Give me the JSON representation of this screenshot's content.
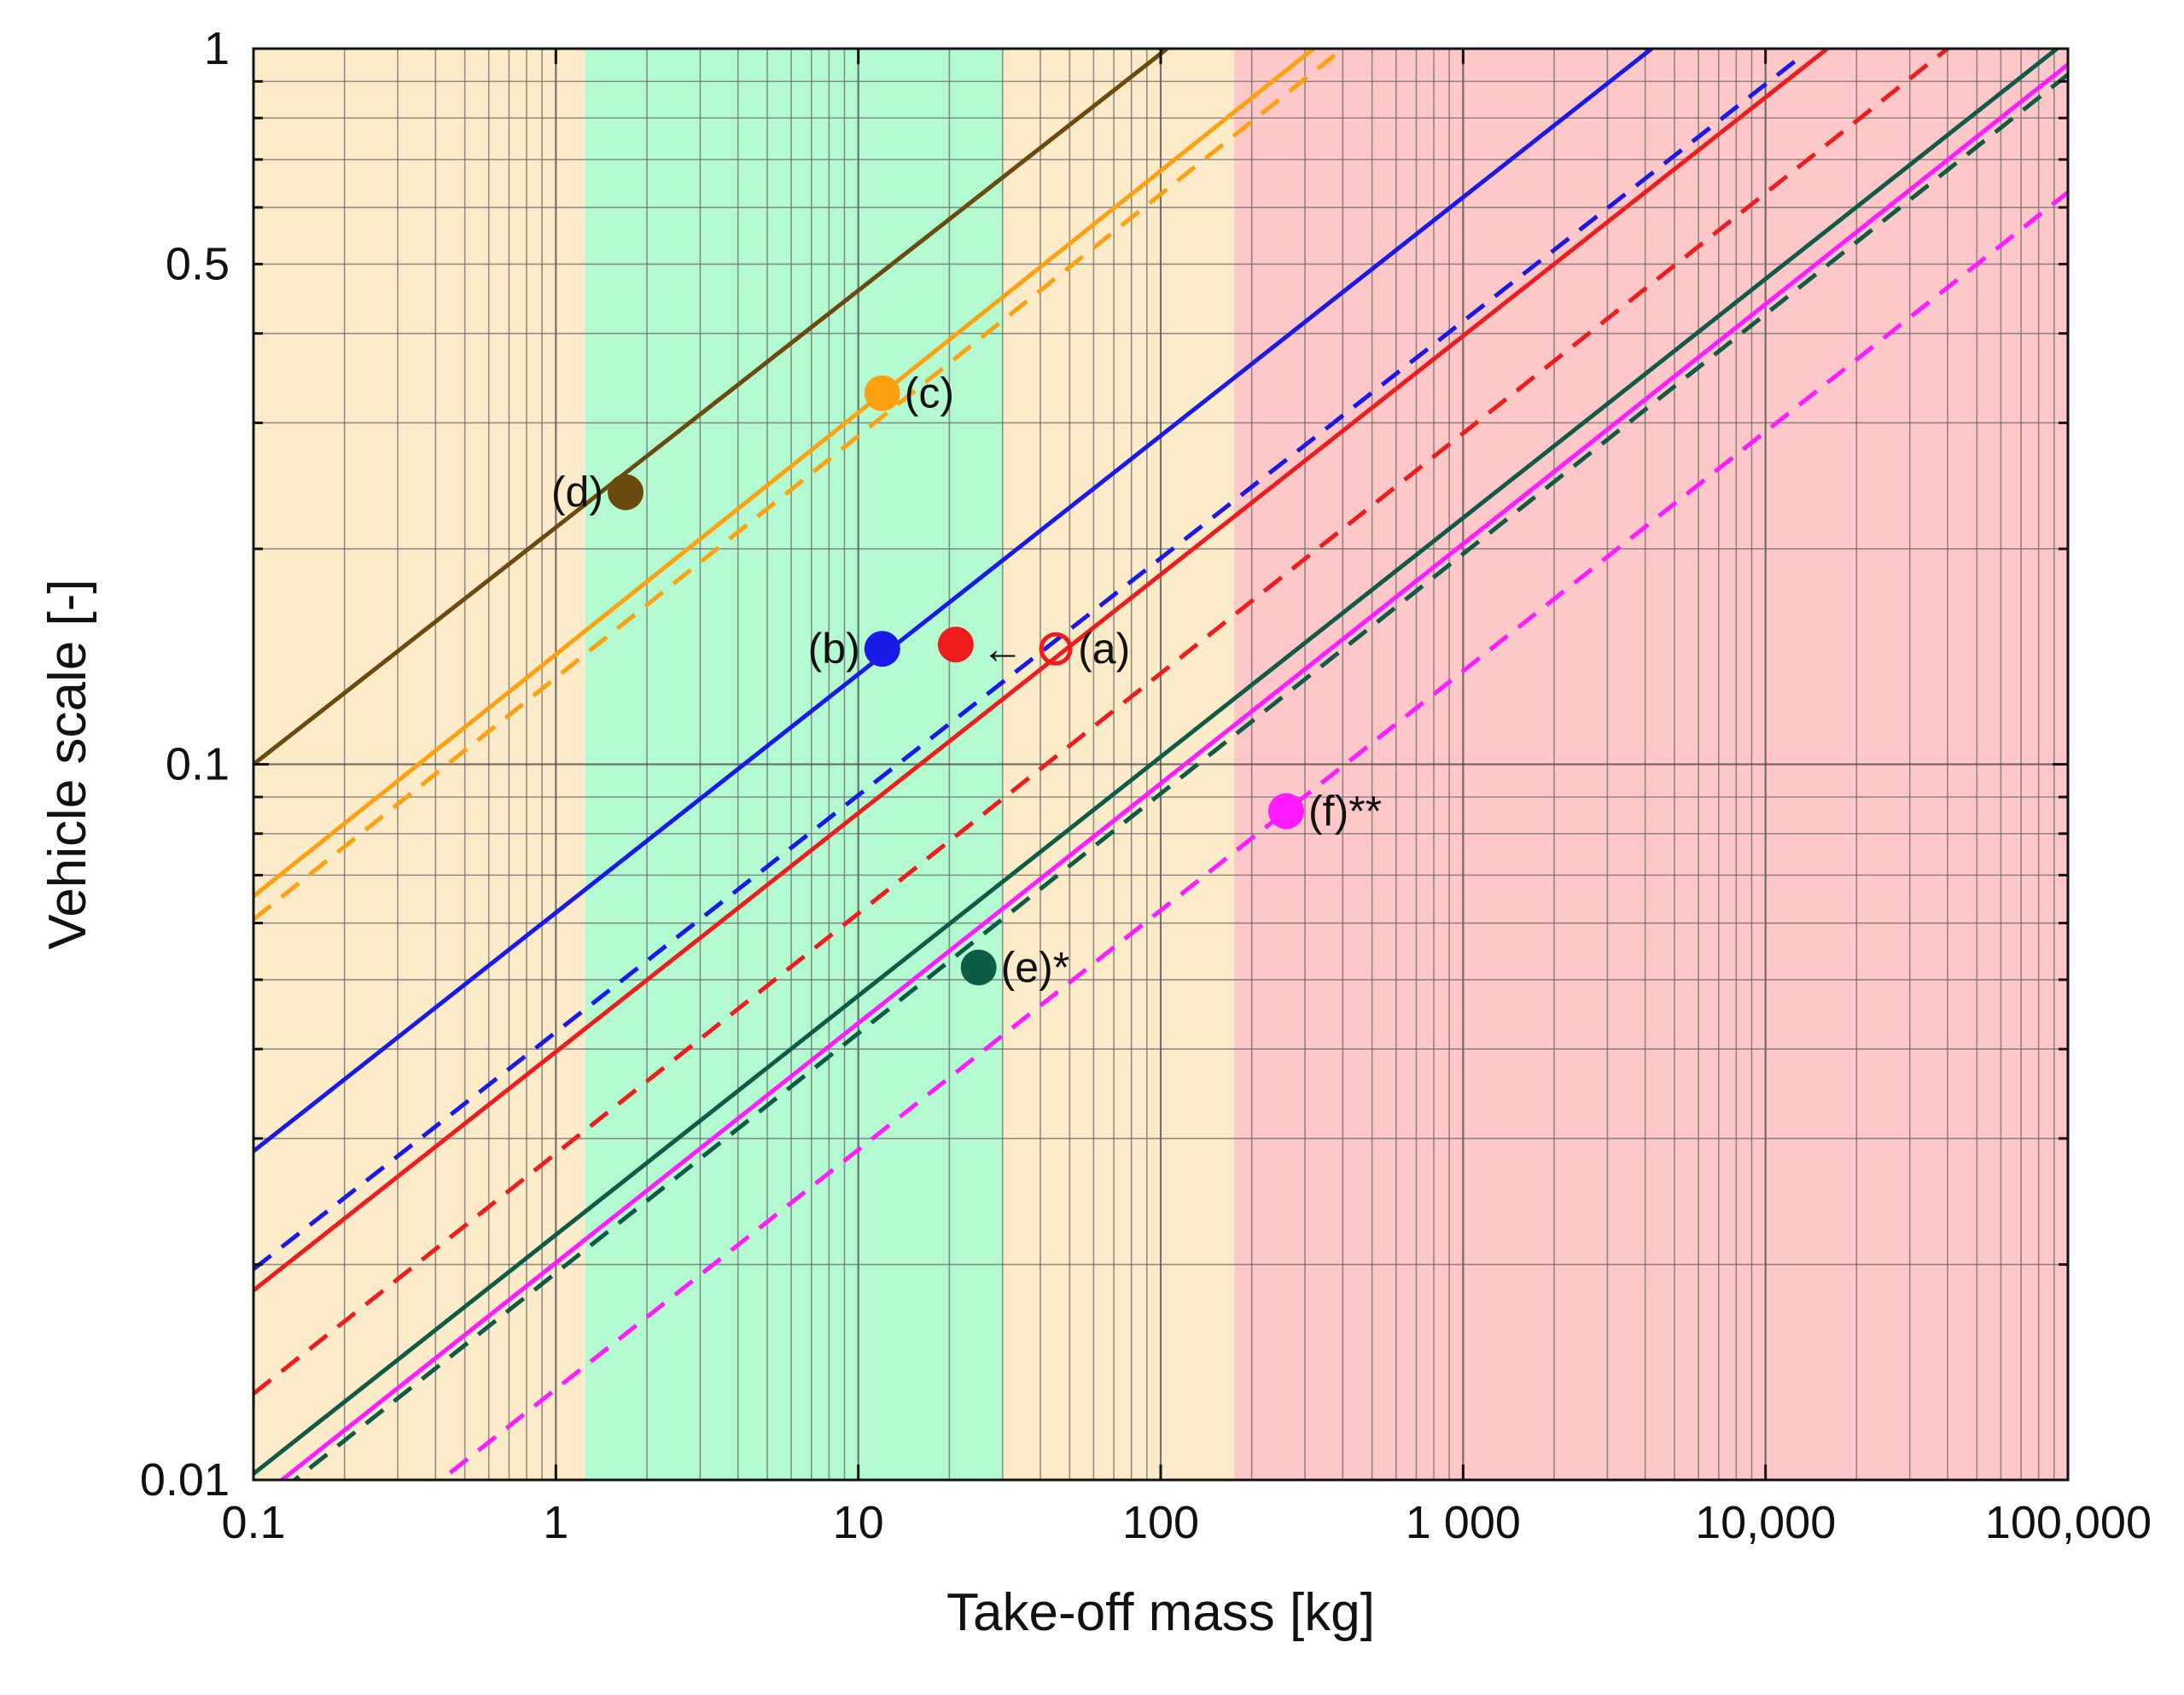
{
  "chart_data": {
    "type": "line",
    "xscale": "log",
    "yscale": "log",
    "xlabel": "Take-off mass  [kg]",
    "ylabel": "Vehicle scale  [-]",
    "xlim": [
      0.1,
      100000
    ],
    "ylim": [
      0.01,
      1
    ],
    "x_ticks": [
      {
        "value": 0.1,
        "label": "0.1"
      },
      {
        "value": 1,
        "label": "1"
      },
      {
        "value": 10,
        "label": "10"
      },
      {
        "value": 100,
        "label": "100"
      },
      {
        "value": 1000,
        "label": "1 000"
      },
      {
        "value": 10000,
        "label": "10,000"
      },
      {
        "value": 100000,
        "label": "100,000"
      }
    ],
    "y_ticks": [
      {
        "value": 0.01,
        "label": "0.01"
      },
      {
        "value": 0.1,
        "label": "0.1"
      },
      {
        "value": 0.5,
        "label": "0.5"
      },
      {
        "value": 1,
        "label": "1"
      }
    ],
    "background_regions": [
      {
        "name": "low",
        "x": [
          0.1,
          1.25
        ],
        "color": "#fcebc9"
      },
      {
        "name": "green",
        "x": [
          1.25,
          30
        ],
        "color": "#b3fad1"
      },
      {
        "name": "mid",
        "x": [
          30,
          175
        ],
        "color": "#fcebc9"
      },
      {
        "name": "high",
        "x": [
          175,
          100000
        ],
        "color": "#ffc8c8"
      }
    ],
    "series": [
      {
        "name": "d-solid",
        "color": "#6b4a10",
        "dash": false,
        "x": [
          0.1,
          105
        ],
        "y": [
          0.1,
          1.0
        ]
      },
      {
        "name": "c-solid",
        "color": "#ffa010",
        "dash": false,
        "x": [
          0.1,
          320
        ],
        "y": [
          0.0654,
          1.0
        ]
      },
      {
        "name": "c-dashed",
        "color": "#ffa010",
        "dash": true,
        "x": [
          0.1,
          400
        ],
        "y": [
          0.0607,
          1.0
        ]
      },
      {
        "name": "b-solid",
        "color": "#1a1ae6",
        "dash": false,
        "x": [
          0.1,
          4200
        ],
        "y": [
          0.0288,
          1.0
        ]
      },
      {
        "name": "b-dashed",
        "color": "#1a1ae6",
        "dash": true,
        "x": [
          0.1,
          12500
        ],
        "y": [
          0.0197,
          0.96
        ]
      },
      {
        "name": "a-solid",
        "color": "#ee1c1c",
        "dash": false,
        "x": [
          0.1,
          16000
        ],
        "y": [
          0.0184,
          1.0
        ]
      },
      {
        "name": "a-dashed",
        "color": "#ee1c1c",
        "dash": true,
        "x": [
          0.1,
          40000
        ],
        "y": [
          0.0132,
          1.0
        ]
      },
      {
        "name": "e-solid",
        "color": "#0e5c48",
        "dash": false,
        "x": [
          0.1,
          92000
        ],
        "y": [
          0.0102,
          1.0
        ]
      },
      {
        "name": "e-dashed",
        "color": "#0e5c48",
        "dash": true,
        "x": [
          0.1,
          100000
        ],
        "y": [
          0.009,
          0.92
        ]
      },
      {
        "name": "f-solid",
        "color": "#ff1aff",
        "dash": false,
        "x": [
          0.1,
          100000
        ],
        "y": [
          0.0093,
          0.95
        ]
      },
      {
        "name": "f-dashed",
        "color": "#ff1aff",
        "dash": true,
        "x": [
          0.1,
          100000
        ],
        "y": [
          0.0062,
          0.63
        ]
      }
    ],
    "points": [
      {
        "label": "(a)",
        "x": 45,
        "y": 0.145,
        "color": "#ee1c1c",
        "filled": false,
        "label_side": "right"
      },
      {
        "label": "",
        "x": 21,
        "y": 0.147,
        "color": "#ee1c1c",
        "filled": true,
        "label_side": "right"
      },
      {
        "label": "(b)",
        "x": 12,
        "y": 0.145,
        "color": "#1a1ae6",
        "filled": true,
        "label_side": "left"
      },
      {
        "label": "(c)",
        "x": 12,
        "y": 0.33,
        "color": "#ffa010",
        "filled": true,
        "label_side": "right"
      },
      {
        "label": "(d)",
        "x": 1.7,
        "y": 0.24,
        "color": "#6b4a10",
        "filled": true,
        "label_side": "left"
      },
      {
        "label": "(e)*",
        "x": 25,
        "y": 0.052,
        "color": "#0e5c48",
        "filled": true,
        "label_side": "right"
      },
      {
        "label": "(f)**",
        "x": 260,
        "y": 0.086,
        "color": "#ff1aff",
        "filled": true,
        "label_side": "right"
      }
    ],
    "annotations": [
      {
        "text": "←",
        "x": 30,
        "y": 0.145
      }
    ]
  }
}
